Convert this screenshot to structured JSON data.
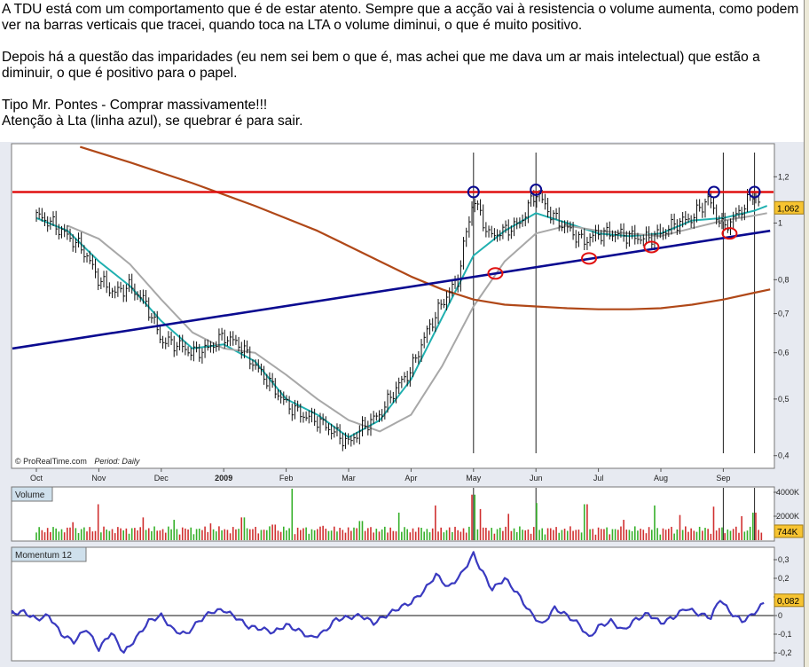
{
  "post": {
    "paragraphs": [
      "A TDU está com um comportamento que é de estar atento. Sempre que a acção vai à resistencia o volume aumenta, como podem ver na barras verticais que tracei, quando toca na LTA o volume diminui, o que é muito positivo.",
      "Depois há a questão das imparidades (eu nem sei bem o que é, mas achei que me dava um ar mais intelectual) que estão a diminuir, o que é positivo para o papel.",
      "Tipo Mr. Pontes - Comprar massivamente!!!",
      "Atenção à Lta (linha azul), se quebrar é para sair."
    ]
  },
  "colors": {
    "resistance": "#e01010",
    "trendline": "#0a0a90",
    "ma_fast": "#20b0b0",
    "ma_slow": "#a8a8a8",
    "ma_long": "#b04818",
    "volume_up": "#36b02a",
    "volume_down": "#d03030",
    "momentum": "#3a3ac0",
    "value_tag": "#f7c431"
  },
  "chart_data": [
    {
      "type": "line",
      "panel": "price",
      "footer": "© ProRealTime.com",
      "period_label": "Period: Daily",
      "y_scale": "log",
      "ylim": [
        0.4,
        1.3
      ],
      "y_ticks": [
        {
          "v": 1.2,
          "label": "1,2"
        },
        {
          "v": 1.0,
          "label": "1"
        },
        {
          "v": 0.8,
          "label": "0,8"
        },
        {
          "v": 0.7,
          "label": "0,7"
        },
        {
          "v": 0.6,
          "label": "0,6"
        },
        {
          "v": 0.5,
          "label": "0,5"
        },
        {
          "v": 0.4,
          "label": "0,4"
        }
      ],
      "last_value": {
        "v": 1.062,
        "label": "1,062"
      },
      "x_months": [
        "Oct",
        "Nov",
        "Dec",
        "2009",
        "Feb",
        "Mar",
        "Apr",
        "May",
        "Jun",
        "Jul",
        "Aug",
        "Sep"
      ],
      "x_range_months": [
        0,
        11.75
      ],
      "price": [
        [
          0.0,
          1.03
        ],
        [
          0.25,
          1.0
        ],
        [
          0.5,
          0.95
        ],
        [
          0.75,
          0.9
        ],
        [
          1.0,
          0.8
        ],
        [
          1.25,
          0.76
        ],
        [
          1.5,
          0.78
        ],
        [
          1.75,
          0.73
        ],
        [
          2.0,
          0.63
        ],
        [
          2.25,
          0.62
        ],
        [
          2.5,
          0.6
        ],
        [
          2.75,
          0.61
        ],
        [
          3.0,
          0.64
        ],
        [
          3.25,
          0.62
        ],
        [
          3.5,
          0.57
        ],
        [
          3.75,
          0.53
        ],
        [
          4.0,
          0.49
        ],
        [
          4.25,
          0.47
        ],
        [
          4.5,
          0.46
        ],
        [
          4.75,
          0.44
        ],
        [
          5.0,
          0.42
        ],
        [
          5.25,
          0.45
        ],
        [
          5.5,
          0.47
        ],
        [
          5.75,
          0.52
        ],
        [
          6.0,
          0.56
        ],
        [
          6.25,
          0.65
        ],
        [
          6.5,
          0.73
        ],
        [
          6.75,
          0.8
        ],
        [
          7.0,
          1.1
        ],
        [
          7.25,
          0.95
        ],
        [
          7.5,
          0.97
        ],
        [
          7.75,
          1.0
        ],
        [
          8.0,
          1.13
        ],
        [
          8.25,
          1.03
        ],
        [
          8.5,
          0.98
        ],
        [
          8.75,
          0.93
        ],
        [
          9.0,
          0.96
        ],
        [
          9.25,
          0.96
        ],
        [
          9.5,
          0.95
        ],
        [
          9.75,
          0.94
        ],
        [
          10.0,
          0.96
        ],
        [
          10.25,
          1.0
        ],
        [
          10.5,
          1.02
        ],
        [
          10.75,
          1.1
        ],
        [
          11.0,
          0.98
        ],
        [
          11.25,
          1.04
        ],
        [
          11.5,
          1.13
        ],
        [
          11.6,
          1.062
        ]
      ],
      "series": [
        {
          "role": "ma_fast",
          "values": [
            [
              0.0,
              1.02
            ],
            [
              0.5,
              0.97
            ],
            [
              1.0,
              0.86
            ],
            [
              1.5,
              0.78
            ],
            [
              2.0,
              0.68
            ],
            [
              2.5,
              0.61
            ],
            [
              3.0,
              0.62
            ],
            [
              3.5,
              0.58
            ],
            [
              4.0,
              0.5
            ],
            [
              4.5,
              0.47
            ],
            [
              5.0,
              0.43
            ],
            [
              5.5,
              0.46
            ],
            [
              6.0,
              0.54
            ],
            [
              6.5,
              0.69
            ],
            [
              7.0,
              0.88
            ],
            [
              7.5,
              0.97
            ],
            [
              8.0,
              1.04
            ],
            [
              8.5,
              1.0
            ],
            [
              9.0,
              0.96
            ],
            [
              9.5,
              0.95
            ],
            [
              10.0,
              0.96
            ],
            [
              10.5,
              1.01
            ],
            [
              11.0,
              1.02
            ],
            [
              11.5,
              1.05
            ],
            [
              11.7,
              1.07
            ]
          ]
        },
        {
          "role": "ma_slow",
          "values": [
            [
              0.5,
              0.99
            ],
            [
              1.0,
              0.94
            ],
            [
              1.5,
              0.85
            ],
            [
              2.0,
              0.74
            ],
            [
              2.5,
              0.65
            ],
            [
              3.0,
              0.61
            ],
            [
              3.5,
              0.6
            ],
            [
              4.0,
              0.55
            ],
            [
              4.5,
              0.5
            ],
            [
              5.0,
              0.46
            ],
            [
              5.5,
              0.44
            ],
            [
              6.0,
              0.47
            ],
            [
              6.5,
              0.57
            ],
            [
              7.0,
              0.72
            ],
            [
              7.5,
              0.86
            ],
            [
              8.0,
              0.96
            ],
            [
              8.5,
              0.99
            ],
            [
              9.0,
              0.97
            ],
            [
              9.5,
              0.96
            ],
            [
              10.0,
              0.95
            ],
            [
              10.5,
              0.98
            ],
            [
              11.0,
              1.01
            ],
            [
              11.5,
              1.03
            ],
            [
              11.7,
              1.04
            ]
          ]
        },
        {
          "role": "ma_long",
          "values": [
            [
              0.7,
              1.35
            ],
            [
              1.5,
              1.27
            ],
            [
              2.5,
              1.17
            ],
            [
              3.5,
              1.07
            ],
            [
              4.5,
              0.97
            ],
            [
              5.5,
              0.86
            ],
            [
              6.0,
              0.81
            ],
            [
              6.5,
              0.77
            ],
            [
              7.0,
              0.74
            ],
            [
              7.5,
              0.725
            ],
            [
              8.0,
              0.72
            ],
            [
              8.5,
              0.715
            ],
            [
              9.0,
              0.712
            ],
            [
              9.5,
              0.712
            ],
            [
              10.0,
              0.715
            ],
            [
              10.5,
              0.725
            ],
            [
              11.0,
              0.74
            ],
            [
              11.5,
              0.76
            ],
            [
              11.75,
              0.77
            ]
          ]
        }
      ],
      "resistance_level": 1.13,
      "trendline": [
        [
          -0.4,
          0.61
        ],
        [
          11.75,
          0.97
        ]
      ],
      "vertical_markers": [
        7.0,
        8.0,
        11.0,
        11.5
      ],
      "annotations": [
        {
          "kind": "circle",
          "color": "resistance",
          "x": 7.0,
          "y": 1.13
        },
        {
          "kind": "circle",
          "color": "resistance",
          "x": 8.0,
          "y": 1.14
        },
        {
          "kind": "circle",
          "color": "resistance",
          "x": 10.85,
          "y": 1.13
        },
        {
          "kind": "circle",
          "color": "resistance",
          "x": 11.5,
          "y": 1.13
        },
        {
          "kind": "ellipse",
          "color": "trendline",
          "x": 7.35,
          "y": 0.82
        },
        {
          "kind": "ellipse",
          "color": "trendline",
          "x": 8.85,
          "y": 0.87
        },
        {
          "kind": "ellipse",
          "color": "trendline",
          "x": 9.85,
          "y": 0.91
        },
        {
          "kind": "ellipse",
          "color": "trendline",
          "x": 11.1,
          "y": 0.96
        }
      ]
    },
    {
      "type": "bar",
      "panel": "volume",
      "title": "Volume",
      "ylim": [
        0,
        4400
      ],
      "y_ticks": [
        {
          "v": 4000,
          "label": "4000K"
        },
        {
          "v": 2000,
          "label": "2000K"
        }
      ],
      "last_value": {
        "v": 744,
        "label": "744K"
      },
      "spikes": [
        {
          "x": 0.6,
          "v": 1500
        },
        {
          "x": 1.0,
          "v": 3000
        },
        {
          "x": 1.7,
          "v": 1900
        },
        {
          "x": 2.2,
          "v": 1700
        },
        {
          "x": 2.8,
          "v": 1400
        },
        {
          "x": 3.3,
          "v": 1900
        },
        {
          "x": 3.8,
          "v": 1300
        },
        {
          "x": 4.1,
          "v": 4300
        },
        {
          "x": 4.6,
          "v": 1200
        },
        {
          "x": 5.2,
          "v": 1600
        },
        {
          "x": 5.8,
          "v": 2300
        },
        {
          "x": 6.4,
          "v": 2900
        },
        {
          "x": 7.0,
          "v": 3800
        },
        {
          "x": 7.1,
          "v": 2600
        },
        {
          "x": 7.55,
          "v": 2200
        },
        {
          "x": 8.0,
          "v": 3100
        },
        {
          "x": 8.8,
          "v": 3000
        },
        {
          "x": 9.4,
          "v": 1700
        },
        {
          "x": 9.9,
          "v": 2900
        },
        {
          "x": 10.3,
          "v": 2100
        },
        {
          "x": 10.85,
          "v": 2800
        },
        {
          "x": 11.3,
          "v": 2000
        },
        {
          "x": 11.5,
          "v": 2300
        }
      ]
    },
    {
      "type": "line",
      "panel": "momentum",
      "title": "Momentum 12",
      "ylim": [
        -0.22,
        0.35
      ],
      "y_ticks": [
        {
          "v": 0.3,
          "label": "0,3"
        },
        {
          "v": 0.2,
          "label": "0,2"
        },
        {
          "v": 0.1,
          "label": "0,1"
        },
        {
          "v": 0.0,
          "label": "0"
        },
        {
          "v": -0.1,
          "label": "-0,1"
        },
        {
          "v": -0.2,
          "label": "-0,2"
        }
      ],
      "last_value": {
        "v": 0.082,
        "label": "0,082"
      },
      "baseline": 0,
      "values": [
        [
          -0.45,
          0.01
        ],
        [
          -0.2,
          0.02
        ],
        [
          0.0,
          -0.02
        ],
        [
          0.2,
          0.0
        ],
        [
          0.4,
          -0.1
        ],
        [
          0.6,
          -0.14
        ],
        [
          0.8,
          -0.07
        ],
        [
          1.0,
          -0.18
        ],
        [
          1.2,
          -0.09
        ],
        [
          1.4,
          -0.2
        ],
        [
          1.6,
          -0.12
        ],
        [
          1.8,
          -0.03
        ],
        [
          2.0,
          0.0
        ],
        [
          2.2,
          -0.08
        ],
        [
          2.4,
          -0.1
        ],
        [
          2.6,
          -0.03
        ],
        [
          2.8,
          0.02
        ],
        [
          3.0,
          0.03
        ],
        [
          3.2,
          -0.01
        ],
        [
          3.4,
          -0.06
        ],
        [
          3.6,
          -0.07
        ],
        [
          3.8,
          -0.09
        ],
        [
          4.0,
          -0.05
        ],
        [
          4.2,
          -0.08
        ],
        [
          4.4,
          -0.12
        ],
        [
          4.6,
          -0.09
        ],
        [
          4.8,
          -0.02
        ],
        [
          5.0,
          -0.01
        ],
        [
          5.2,
          0.0
        ],
        [
          5.4,
          -0.04
        ],
        [
          5.6,
          0.0
        ],
        [
          5.8,
          0.04
        ],
        [
          6.0,
          0.07
        ],
        [
          6.2,
          0.13
        ],
        [
          6.4,
          0.22
        ],
        [
          6.6,
          0.15
        ],
        [
          6.8,
          0.22
        ],
        [
          7.0,
          0.33
        ],
        [
          7.1,
          0.26
        ],
        [
          7.3,
          0.14
        ],
        [
          7.5,
          0.2
        ],
        [
          7.7,
          0.12
        ],
        [
          7.9,
          0.02
        ],
        [
          8.1,
          -0.05
        ],
        [
          8.3,
          0.04
        ],
        [
          8.5,
          0.0
        ],
        [
          8.7,
          -0.05
        ],
        [
          8.85,
          -0.12
        ],
        [
          9.0,
          -0.06
        ],
        [
          9.2,
          -0.03
        ],
        [
          9.4,
          -0.08
        ],
        [
          9.6,
          -0.02
        ],
        [
          9.8,
          0.01
        ],
        [
          10.0,
          -0.04
        ],
        [
          10.2,
          -0.01
        ],
        [
          10.4,
          0.04
        ],
        [
          10.6,
          0.01
        ],
        [
          10.8,
          -0.01
        ],
        [
          10.95,
          0.09
        ],
        [
          11.1,
          0.02
        ],
        [
          11.3,
          -0.03
        ],
        [
          11.45,
          0.0
        ],
        [
          11.6,
          0.05
        ],
        [
          11.7,
          0.082
        ]
      ]
    }
  ]
}
